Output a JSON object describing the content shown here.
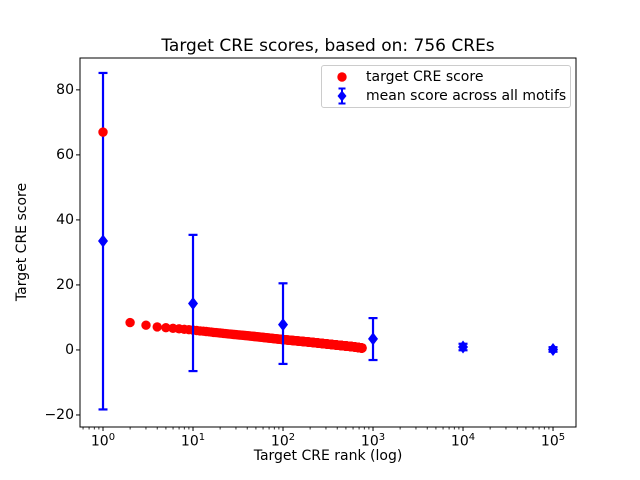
{
  "chart_data": {
    "type": "scatter",
    "title": "Target CRE scores, based on: 756 CREs",
    "xlabel": "Target CRE rank (log)",
    "ylabel": "Target CRE score",
    "x_scale": "log",
    "xlim": [
      0.555,
      180000
    ],
    "ylim": [
      -23.7,
      89.8
    ],
    "x_tick_base": 10,
    "x_tick_exponents": [
      0,
      1,
      2,
      3,
      4,
      5
    ],
    "y_ticks": [
      -20,
      0,
      20,
      40,
      60,
      80
    ],
    "grid": false,
    "legend_position": "upper right",
    "colors": {
      "target": "#ff0000",
      "mean": "#0000ff",
      "axis": "#000000",
      "legend_border": "#cccccc"
    },
    "series": [
      {
        "name": "target CRE score",
        "type": "scatter",
        "marker": "circle",
        "color": "#ff0000",
        "n_points": 756,
        "note": "756 red points at ranks 1..756; scores follow these (rank,score) anchors with log-linear interpolation between them",
        "rank_score_anchors": [
          [
            1,
            67.0
          ],
          [
            2,
            8.4
          ],
          [
            3,
            7.6
          ],
          [
            4,
            7.1
          ],
          [
            5,
            6.85
          ],
          [
            7,
            6.5
          ],
          [
            10,
            6.1
          ],
          [
            20,
            5.2
          ],
          [
            50,
            4.1
          ],
          [
            100,
            3.2
          ],
          [
            200,
            2.4
          ],
          [
            400,
            1.5
          ],
          [
            600,
            1.0
          ],
          [
            756,
            0.6
          ]
        ]
      },
      {
        "name": "mean score across all motifs",
        "type": "errorbar",
        "marker": "diamond",
        "color": "#0000ff",
        "points": [
          {
            "x": 1,
            "y": 33.5,
            "err_lo": 51.8,
            "err_hi": 51.7
          },
          {
            "x": 10,
            "y": 14.3,
            "err_lo": 20.8,
            "err_hi": 21.1
          },
          {
            "x": 100,
            "y": 7.8,
            "err_lo": 12.1,
            "err_hi": 12.7
          },
          {
            "x": 1000,
            "y": 3.4,
            "err_lo": 6.5,
            "err_hi": 6.4
          },
          {
            "x": 10000,
            "y": 0.9,
            "err_lo": 1.0,
            "err_hi": 1.0
          },
          {
            "x": 100000,
            "y": 0.15,
            "err_lo": 0.7,
            "err_hi": 0.7
          }
        ]
      }
    ]
  }
}
